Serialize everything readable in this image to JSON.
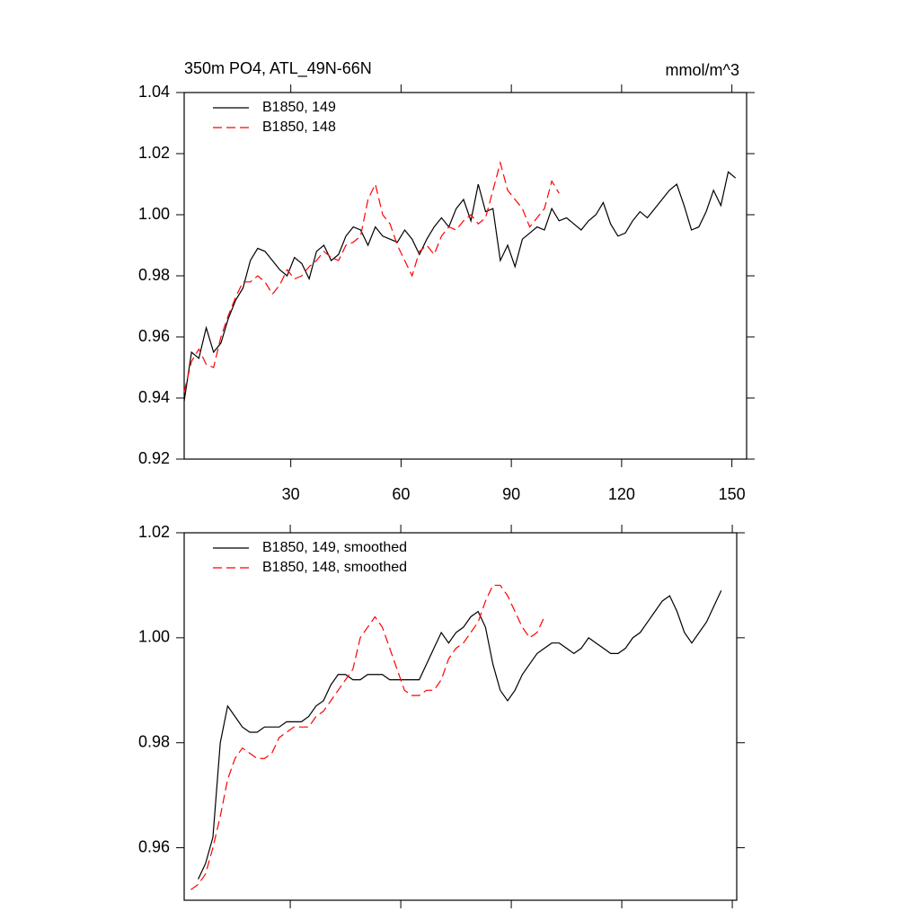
{
  "chart_data": [
    {
      "type": "line",
      "title": "350m PO4, ATL_49N-66N",
      "units": "mmol/m^3",
      "x": [
        1,
        3,
        5,
        7,
        9,
        11,
        13,
        15,
        17,
        19,
        21,
        23,
        25,
        27,
        29,
        31,
        33,
        35,
        37,
        39,
        41,
        43,
        45,
        47,
        49,
        51,
        53,
        55,
        57,
        59,
        61,
        63,
        65,
        67,
        69,
        71,
        73,
        75,
        77,
        79,
        81,
        83,
        85,
        87,
        89,
        91,
        93,
        95,
        97,
        99,
        101,
        103,
        105,
        107,
        109,
        111,
        113,
        115,
        117,
        119,
        121,
        123,
        125,
        127,
        129,
        131,
        133,
        135,
        137,
        139,
        141,
        143,
        145,
        147,
        149,
        151
      ],
      "series": [
        {
          "name": "B1850, 149",
          "color": "#000000",
          "linestyle": "solid",
          "values": [
            0.939,
            0.955,
            0.953,
            0.963,
            0.955,
            0.958,
            0.966,
            0.972,
            0.976,
            0.985,
            0.989,
            0.988,
            0.985,
            0.982,
            0.98,
            0.986,
            0.984,
            0.979,
            0.988,
            0.99,
            0.985,
            0.987,
            0.993,
            0.996,
            0.995,
            0.99,
            0.996,
            0.993,
            0.992,
            0.991,
            0.995,
            0.992,
            0.987,
            0.992,
            0.996,
            0.999,
            0.996,
            1.002,
            1.005,
            0.998,
            1.01,
            1.001,
            1.002,
            0.985,
            0.99,
            0.983,
            0.992,
            0.994,
            0.996,
            0.995,
            1.002,
            0.998,
            0.999,
            0.997,
            0.995,
            0.998,
            1.0,
            1.004,
            0.997,
            0.993,
            0.994,
            0.998,
            1.001,
            0.999,
            1.002,
            1.005,
            1.008,
            1.01,
            1.003,
            0.995,
            0.996,
            1.001,
            1.008,
            1.003,
            1.014,
            1.012
          ]
        },
        {
          "name": "B1850, 148",
          "color": "#ff0000",
          "linestyle": "dashed",
          "values": [
            0.942,
            0.952,
            0.956,
            0.951,
            0.95,
            0.96,
            0.967,
            0.973,
            0.978,
            0.978,
            0.98,
            0.978,
            0.974,
            0.977,
            0.982,
            0.979,
            0.98,
            0.983,
            0.985,
            0.988,
            0.986,
            0.985,
            0.99,
            0.991,
            0.993,
            1.005,
            1.01,
            1.0,
            0.997,
            0.99,
            0.985,
            0.98,
            0.988,
            0.99,
            0.987,
            0.993,
            0.996,
            0.995,
            0.998,
            1.0,
            0.997,
            0.999,
            1.008,
            1.017,
            1.008,
            1.005,
            1.002,
            0.996,
            0.999,
            1.002,
            1.011,
            1.007,
            null,
            null,
            null,
            null,
            null,
            null,
            null,
            null,
            null,
            null,
            null,
            null,
            null,
            null,
            null,
            null,
            null,
            null,
            null,
            null,
            null,
            null,
            null,
            null
          ]
        }
      ],
      "xlim": [
        1,
        154
      ],
      "xticks": [
        30,
        60,
        90,
        120,
        150
      ],
      "xtick_labels": true,
      "ylim": [
        0.92,
        1.04
      ],
      "yticks": [
        {
          "value": 0.92,
          "label": "0.92"
        },
        0.94,
        0.96,
        0.98,
        {
          "value": 1,
          "label": "1.00"
        },
        1.02,
        1.04
      ]
    },
    {
      "type": "line",
      "x": [
        1,
        3,
        5,
        7,
        9,
        11,
        13,
        15,
        17,
        19,
        21,
        23,
        25,
        27,
        29,
        31,
        33,
        35,
        37,
        39,
        41,
        43,
        45,
        47,
        49,
        51,
        53,
        55,
        57,
        59,
        61,
        63,
        65,
        67,
        69,
        71,
        73,
        75,
        77,
        79,
        81,
        83,
        85,
        87,
        89,
        91,
        93,
        95,
        97,
        99,
        101,
        103,
        105,
        107,
        109,
        111,
        113,
        115,
        117,
        119,
        121,
        123,
        125,
        127,
        129,
        131,
        133,
        135,
        137,
        139,
        141,
        143,
        145,
        147,
        149,
        151
      ],
      "series": [
        {
          "name": "B1850, 149, smoothed",
          "color": "#000000",
          "linestyle": "solid",
          "values": [
            null,
            null,
            0.954,
            0.957,
            0.962,
            0.98,
            0.987,
            0.985,
            0.983,
            0.982,
            0.982,
            0.983,
            0.983,
            0.983,
            0.984,
            0.984,
            0.984,
            0.985,
            0.987,
            0.988,
            0.991,
            0.993,
            0.993,
            0.992,
            0.992,
            0.993,
            0.993,
            0.993,
            0.992,
            0.992,
            0.992,
            0.992,
            0.992,
            0.995,
            0.998,
            1.001,
            0.999,
            1.001,
            1.002,
            1.004,
            1.005,
            1.002,
            0.995,
            0.99,
            0.988,
            0.99,
            0.993,
            0.995,
            0.997,
            0.998,
            0.999,
            0.999,
            0.998,
            0.997,
            0.998,
            1.0,
            0.999,
            0.998,
            0.997,
            0.997,
            0.998,
            1.0,
            1.001,
            1.003,
            1.005,
            1.007,
            1.008,
            1.005,
            1.001,
            0.999,
            1.001,
            1.003,
            1.006,
            1.009,
            null,
            null
          ]
        },
        {
          "name": "B1850, 148, smoothed",
          "color": "#ff0000",
          "linestyle": "dashed",
          "values": [
            null,
            0.952,
            0.953,
            0.955,
            0.96,
            0.966,
            0.973,
            0.977,
            0.979,
            0.978,
            0.977,
            0.977,
            0.978,
            0.981,
            0.982,
            0.983,
            0.983,
            0.983,
            0.985,
            0.986,
            0.988,
            0.99,
            0.992,
            0.994,
            1.0,
            1.002,
            1.004,
            1.002,
            0.998,
            0.994,
            0.99,
            0.989,
            0.989,
            0.99,
            0.99,
            0.992,
            0.996,
            0.998,
            0.999,
            1.001,
            1.003,
            1.007,
            1.01,
            1.01,
            1.008,
            1.005,
            1.002,
            1.0,
            1.001,
            1.004,
            null,
            null,
            null,
            null,
            null,
            null,
            null,
            null,
            null,
            null,
            null,
            null,
            null,
            null,
            null,
            null,
            null,
            null,
            null,
            null,
            null,
            null,
            null,
            null,
            null,
            null
          ]
        }
      ],
      "xlim": [
        1.2,
        151.2
      ],
      "xticks": [
        30,
        60,
        90,
        120,
        150
      ],
      "xtick_labels": false,
      "ylim": [
        0.95,
        1.02
      ],
      "yticks": [
        0.96,
        0.98,
        {
          "value": 1,
          "label": "1.00"
        },
        1.02
      ]
    }
  ]
}
